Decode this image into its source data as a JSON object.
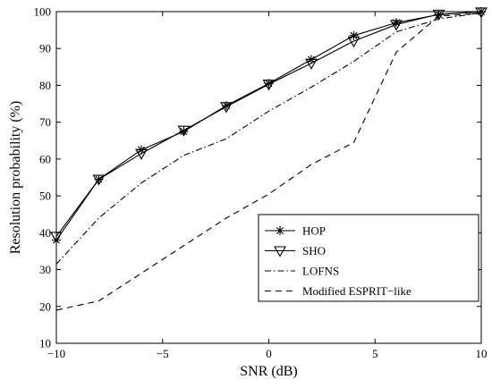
{
  "chart_data": {
    "type": "line",
    "title": "",
    "xlabel": "SNR (dB)",
    "ylabel": "Resolution probability (%)",
    "xlim": [
      -10,
      10
    ],
    "ylim": [
      10,
      100
    ],
    "xticks": [
      -10,
      -5,
      0,
      5,
      10
    ],
    "yticks": [
      10,
      20,
      30,
      40,
      50,
      60,
      70,
      80,
      90,
      100
    ],
    "grid": false,
    "legend_position": "bottom-right",
    "x": [
      -10,
      -8,
      -6,
      -4,
      -2,
      0,
      2,
      4,
      6,
      8,
      10
    ],
    "series": [
      {
        "name": "HOP",
        "line_style": "solid",
        "marker": "asterisk",
        "color": "#000000",
        "values": [
          38,
          54.5,
          62.5,
          67.5,
          74.5,
          80.5,
          87,
          93.5,
          97,
          99.2,
          100
        ]
      },
      {
        "name": "SHO",
        "line_style": "solid",
        "marker": "triangle-down",
        "color": "#000000",
        "values": [
          39,
          54.5,
          61.5,
          67.8,
          74.2,
          80.3,
          86,
          92,
          96.5,
          99.3,
          99.9
        ]
      },
      {
        "name": "LOFNS",
        "line_style": "dash-dot",
        "marker": "none",
        "color": "#000000",
        "values": [
          31.5,
          44,
          53.5,
          61,
          65.5,
          73,
          79.5,
          86.5,
          94.5,
          98,
          99.7
        ]
      },
      {
        "name": "Modified ESPRIT−like",
        "line_style": "dashed",
        "marker": "none",
        "color": "#000000",
        "values": [
          19,
          21.5,
          29,
          36.5,
          44,
          50.5,
          58.5,
          64.5,
          89,
          98.8,
          99.5
        ]
      }
    ]
  }
}
